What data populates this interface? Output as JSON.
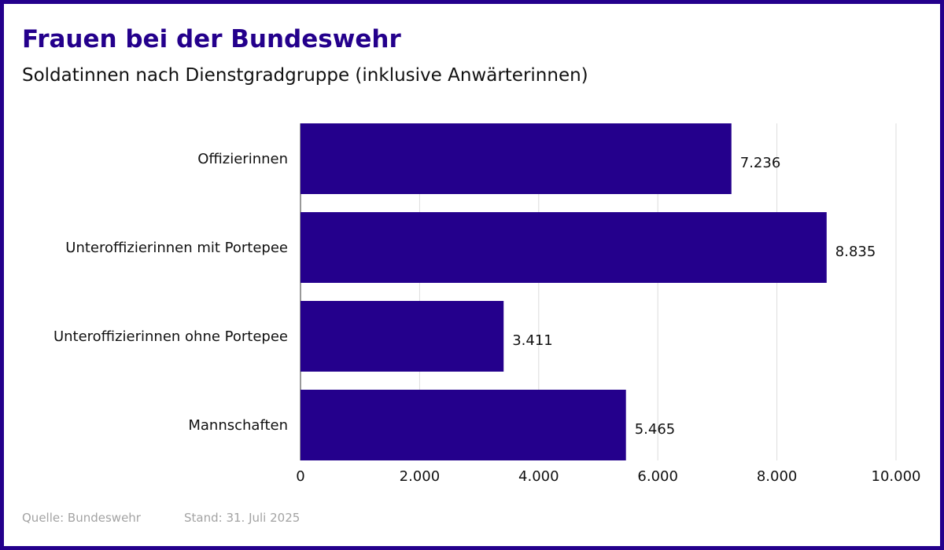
{
  "title": "Frauen bei der Bundeswehr",
  "subtitle": "Soldatinnen nach Dienstgradgruppe (inklusive Anwärterinnen)",
  "source": "Quelle: Bundeswehr",
  "date": "Stand: 31. Juli 2025",
  "colors": {
    "frame": "#24008c",
    "bar": "#24008c",
    "title": "#24008c",
    "footer": "#a3a3a3",
    "grid": "#dcdcdc"
  },
  "chart_data": {
    "type": "bar",
    "orientation": "horizontal",
    "categories": [
      "Offizierinnen",
      "Unteroffizierinnen mit Portepee",
      "Unteroffizierinnen ohne Portepee",
      "Mannschaften"
    ],
    "values": [
      7236,
      8835,
      3411,
      5465
    ],
    "value_labels": [
      "7.236",
      "8.835",
      "3.411",
      "5.465"
    ],
    "xlim": [
      0,
      10000
    ],
    "xticks": [
      0,
      2000,
      4000,
      6000,
      8000,
      10000
    ],
    "xtick_labels": [
      "0",
      "2.000",
      "4.000",
      "6.000",
      "8.000",
      "10.000"
    ],
    "grid": true,
    "legend": false
  }
}
